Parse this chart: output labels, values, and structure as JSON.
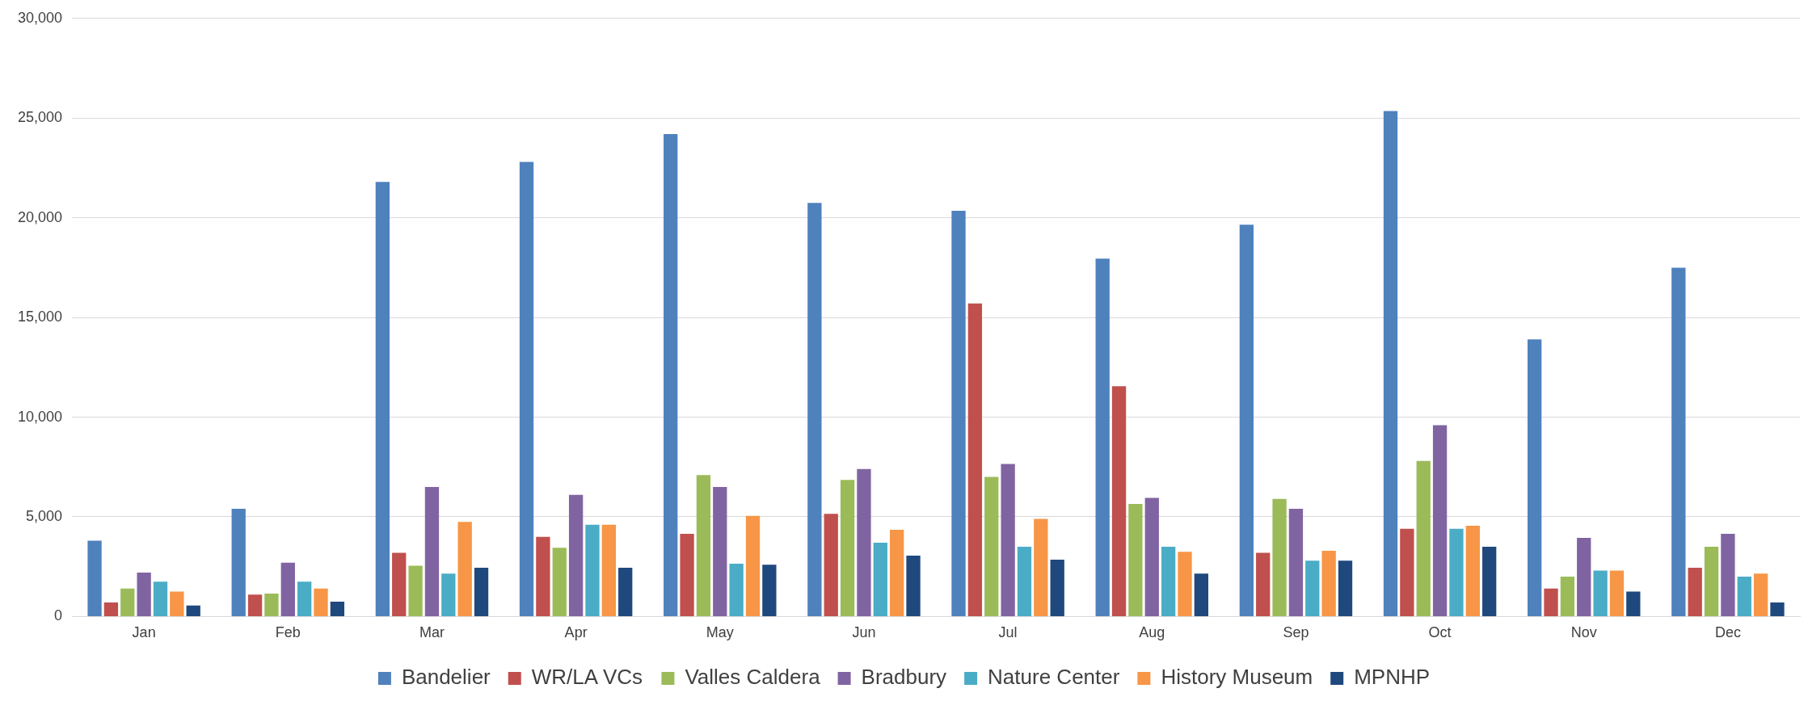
{
  "chart_data": {
    "type": "bar",
    "categories": [
      "Jan",
      "Feb",
      "Mar",
      "Apr",
      "May",
      "Jun",
      "Jul",
      "Aug",
      "Sep",
      "Oct",
      "Nov",
      "Dec"
    ],
    "series": [
      {
        "name": "Bandelier",
        "color": "#4f81bd",
        "values": [
          3800,
          5400,
          21800,
          22800,
          24200,
          20750,
          20350,
          17950,
          19650,
          25350,
          13900,
          17500
        ]
      },
      {
        "name": "WR/LA VCs",
        "color": "#c0504d",
        "values": [
          700,
          1100,
          3200,
          4000,
          4150,
          5150,
          15700,
          11550,
          3200,
          4400,
          1400,
          2450
        ]
      },
      {
        "name": "Valles Caldera",
        "color": "#9bbb59",
        "values": [
          1400,
          1150,
          2550,
          3450,
          7100,
          6850,
          7000,
          5650,
          5900,
          7800,
          2000,
          3500
        ]
      },
      {
        "name": "Bradbury",
        "color": "#8064a2",
        "values": [
          2200,
          2700,
          6500,
          6100,
          6500,
          7400,
          7650,
          5950,
          5400,
          9600,
          3950,
          4150
        ]
      },
      {
        "name": "Nature Center",
        "color": "#4bacc6",
        "values": [
          1750,
          1750,
          2150,
          4600,
          2650,
          3700,
          3500,
          3500,
          2800,
          4400,
          2300,
          2000
        ]
      },
      {
        "name": "History Museum",
        "color": "#f79646",
        "values": [
          1250,
          1400,
          4750,
          4600,
          5050,
          4350,
          4900,
          3250,
          3300,
          4550,
          2300,
          2150
        ]
      },
      {
        "name": "MPNHP",
        "color": "#1f497d",
        "values": [
          550,
          750,
          2450,
          2450,
          2600,
          3050,
          2850,
          2150,
          2800,
          3500,
          1250,
          700
        ]
      }
    ],
    "ylim": [
      0,
      30000
    ],
    "yticks": [
      {
        "value": 0,
        "label": "0"
      },
      {
        "value": 5000,
        "label": "5,000"
      },
      {
        "value": 10000,
        "label": "10,000"
      },
      {
        "value": 15000,
        "label": "15,000"
      },
      {
        "value": 20000,
        "label": "20,000"
      },
      {
        "value": 25000,
        "label": "25,000"
      },
      {
        "value": 30000,
        "label": "30,000"
      }
    ],
    "grid": "y",
    "legend": "bottom"
  }
}
